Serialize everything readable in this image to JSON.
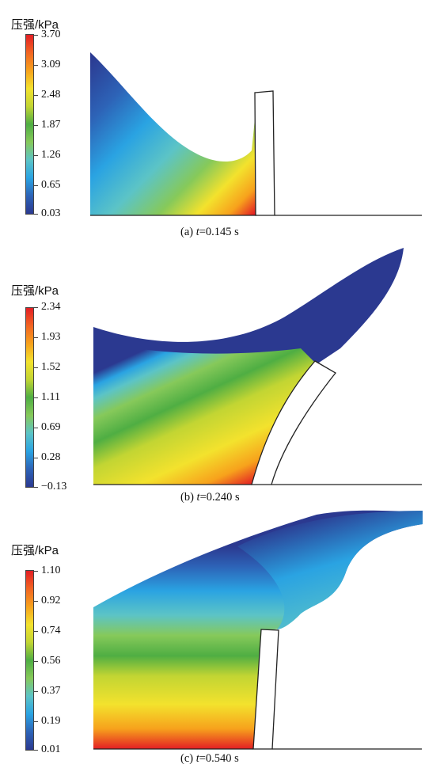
{
  "colorbar_title": "压强/kPa",
  "colormap": [
    "#2b3990",
    "#2d63b7",
    "#2aa3e2",
    "#5cc4c6",
    "#86c95a",
    "#4fae43",
    "#c2d533",
    "#f3e22d",
    "#f7a21c",
    "#f26522",
    "#e31e24"
  ],
  "wall_fill": "#ffffff",
  "wall_stroke": "#222222",
  "panels": [
    {
      "ticks": [
        "3.70",
        "3.09",
        "2.48",
        "1.87",
        "1.26",
        "0.65",
        "0.03"
      ],
      "caption": {
        "prefix": "(a) ",
        "var": "t",
        "suffix": "=0.145 s"
      }
    },
    {
      "ticks": [
        "2.34",
        "1.93",
        "1.52",
        "1.11",
        "0.69",
        "0.28",
        "−0.13"
      ],
      "caption": {
        "prefix": "(b) ",
        "var": "t",
        "suffix": "=0.240 s"
      }
    },
    {
      "ticks": [
        "1.10",
        "0.92",
        "0.74",
        "0.56",
        "0.37",
        "0.19",
        "0.01"
      ],
      "caption": {
        "prefix": "(c) ",
        "var": "t",
        "suffix": "=0.540 s"
      }
    }
  ]
}
